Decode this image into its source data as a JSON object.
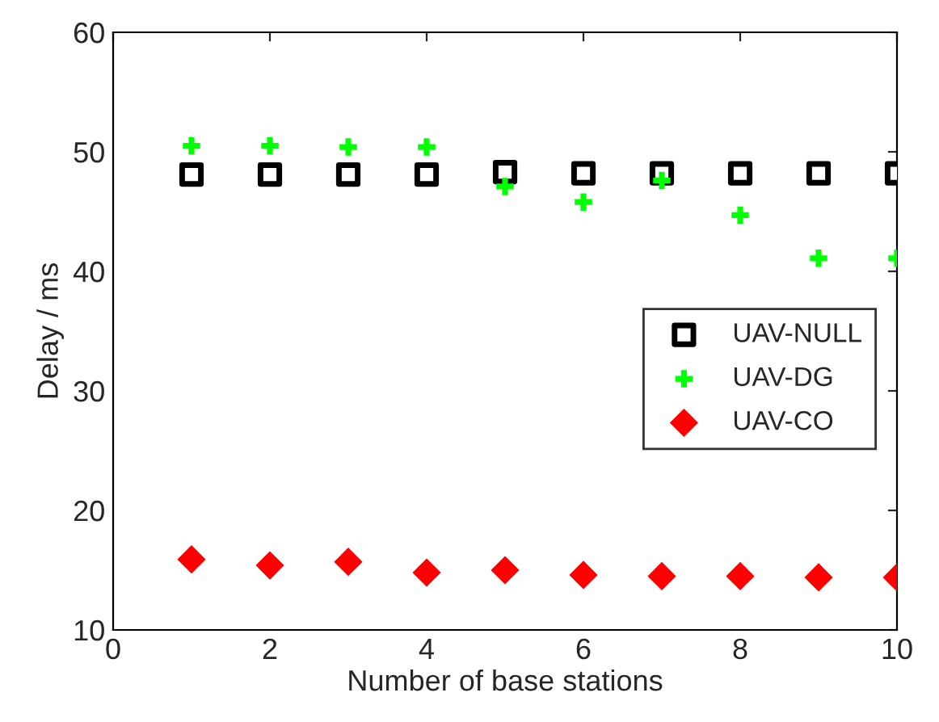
{
  "chart_data": {
    "type": "scatter",
    "xlabel": "Number of base stations",
    "ylabel": "Delay / ms",
    "x": [
      1,
      2,
      3,
      4,
      5,
      6,
      7,
      8,
      9,
      10
    ],
    "series": [
      {
        "name": "UAV-NULL",
        "color": "#000000",
        "marker": "square",
        "values": [
          48.1,
          48.1,
          48.1,
          48.1,
          48.3,
          48.2,
          48.2,
          48.2,
          48.2,
          48.2
        ]
      },
      {
        "name": "UAV-DG",
        "color": "#00ff00",
        "marker": "cross",
        "values": [
          50.5,
          50.5,
          50.4,
          50.4,
          47.1,
          45.8,
          47.6,
          44.7,
          41.1,
          41.1
        ]
      },
      {
        "name": "UAV-CO",
        "color": "#ff0000",
        "marker": "diamond",
        "values": [
          15.9,
          15.4,
          15.7,
          14.8,
          15.0,
          14.6,
          14.5,
          14.5,
          14.4,
          14.4
        ]
      }
    ],
    "xlim": [
      0,
      10
    ],
    "xticks": [
      0,
      2,
      4,
      6,
      8,
      10
    ],
    "ylim": [
      10,
      60
    ],
    "yticks": [
      10,
      20,
      30,
      40,
      50,
      60
    ],
    "grid": false,
    "legend": "center right"
  }
}
